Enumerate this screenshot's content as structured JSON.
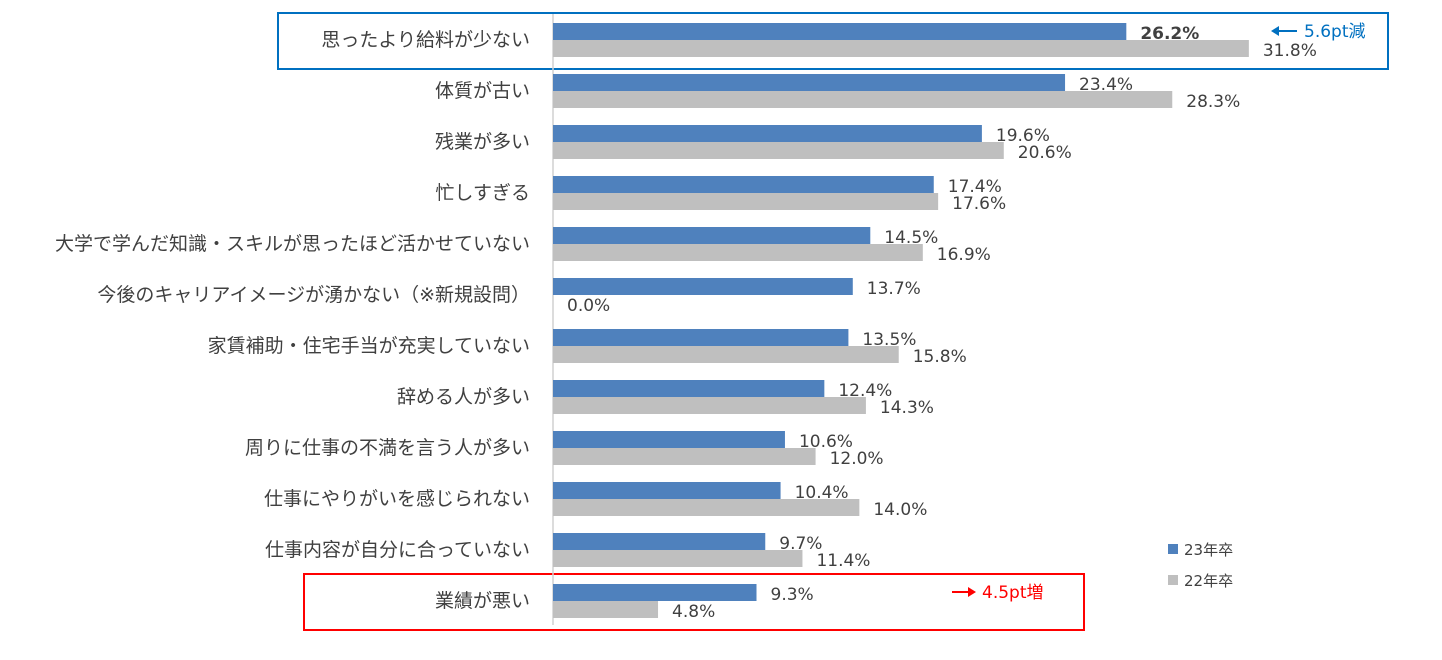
{
  "chart_data": {
    "type": "bar",
    "orientation": "horizontal",
    "categories": [
      "思ったより給料が少ない",
      "体質が古い",
      "残業が多い",
      "忙しすぎる",
      "大学で学んだ知識・スキルが思ったほど活かせていない",
      "今後のキャリアイメージが湧かない（※新規設問）",
      "家賃補助・住宅手当が充実していない",
      "辞める人が多い",
      "周りに仕事の不満を言う人が多い",
      "仕事にやりがいを感じられない",
      "仕事内容が自分に合っていない",
      "業績が悪い"
    ],
    "series": [
      {
        "name": "23年卒",
        "color": "#4f81bd",
        "values": [
          26.2,
          23.4,
          19.6,
          17.4,
          14.5,
          13.7,
          13.5,
          12.4,
          10.6,
          10.4,
          9.7,
          9.3
        ],
        "labels": [
          "26.2%",
          "23.4%",
          "19.6%",
          "17.4%",
          "14.5%",
          "13.7%",
          "13.5%",
          "12.4%",
          "10.6%",
          "10.4%",
          "9.7%",
          "9.3%"
        ]
      },
      {
        "name": "22年卒",
        "color": "#bfbfbf",
        "values": [
          31.8,
          28.3,
          20.6,
          17.6,
          16.9,
          0.0,
          15.8,
          14.3,
          12.0,
          14.0,
          11.4,
          4.8
        ],
        "labels": [
          "31.8%",
          "28.3%",
          "20.6%",
          "17.6%",
          "16.9%",
          "0.0%",
          "15.8%",
          "14.3%",
          "12.0%",
          "14.0%",
          "11.4%",
          "4.8%"
        ]
      }
    ],
    "xlim": [
      0,
      34
    ],
    "grid": false,
    "legend_position": "bottom-right",
    "annotations": [
      {
        "category_index": 0,
        "text": "5.6pt減",
        "color": "#0070c0",
        "arrow": "left"
      },
      {
        "category_index": 11,
        "text": "4.5pt増",
        "color": "#ff0000",
        "arrow": "right"
      }
    ],
    "highlight_boxes": [
      {
        "category_index": 0,
        "color": "#0070c0"
      },
      {
        "category_index": 11,
        "color": "#ff0000"
      }
    ]
  }
}
